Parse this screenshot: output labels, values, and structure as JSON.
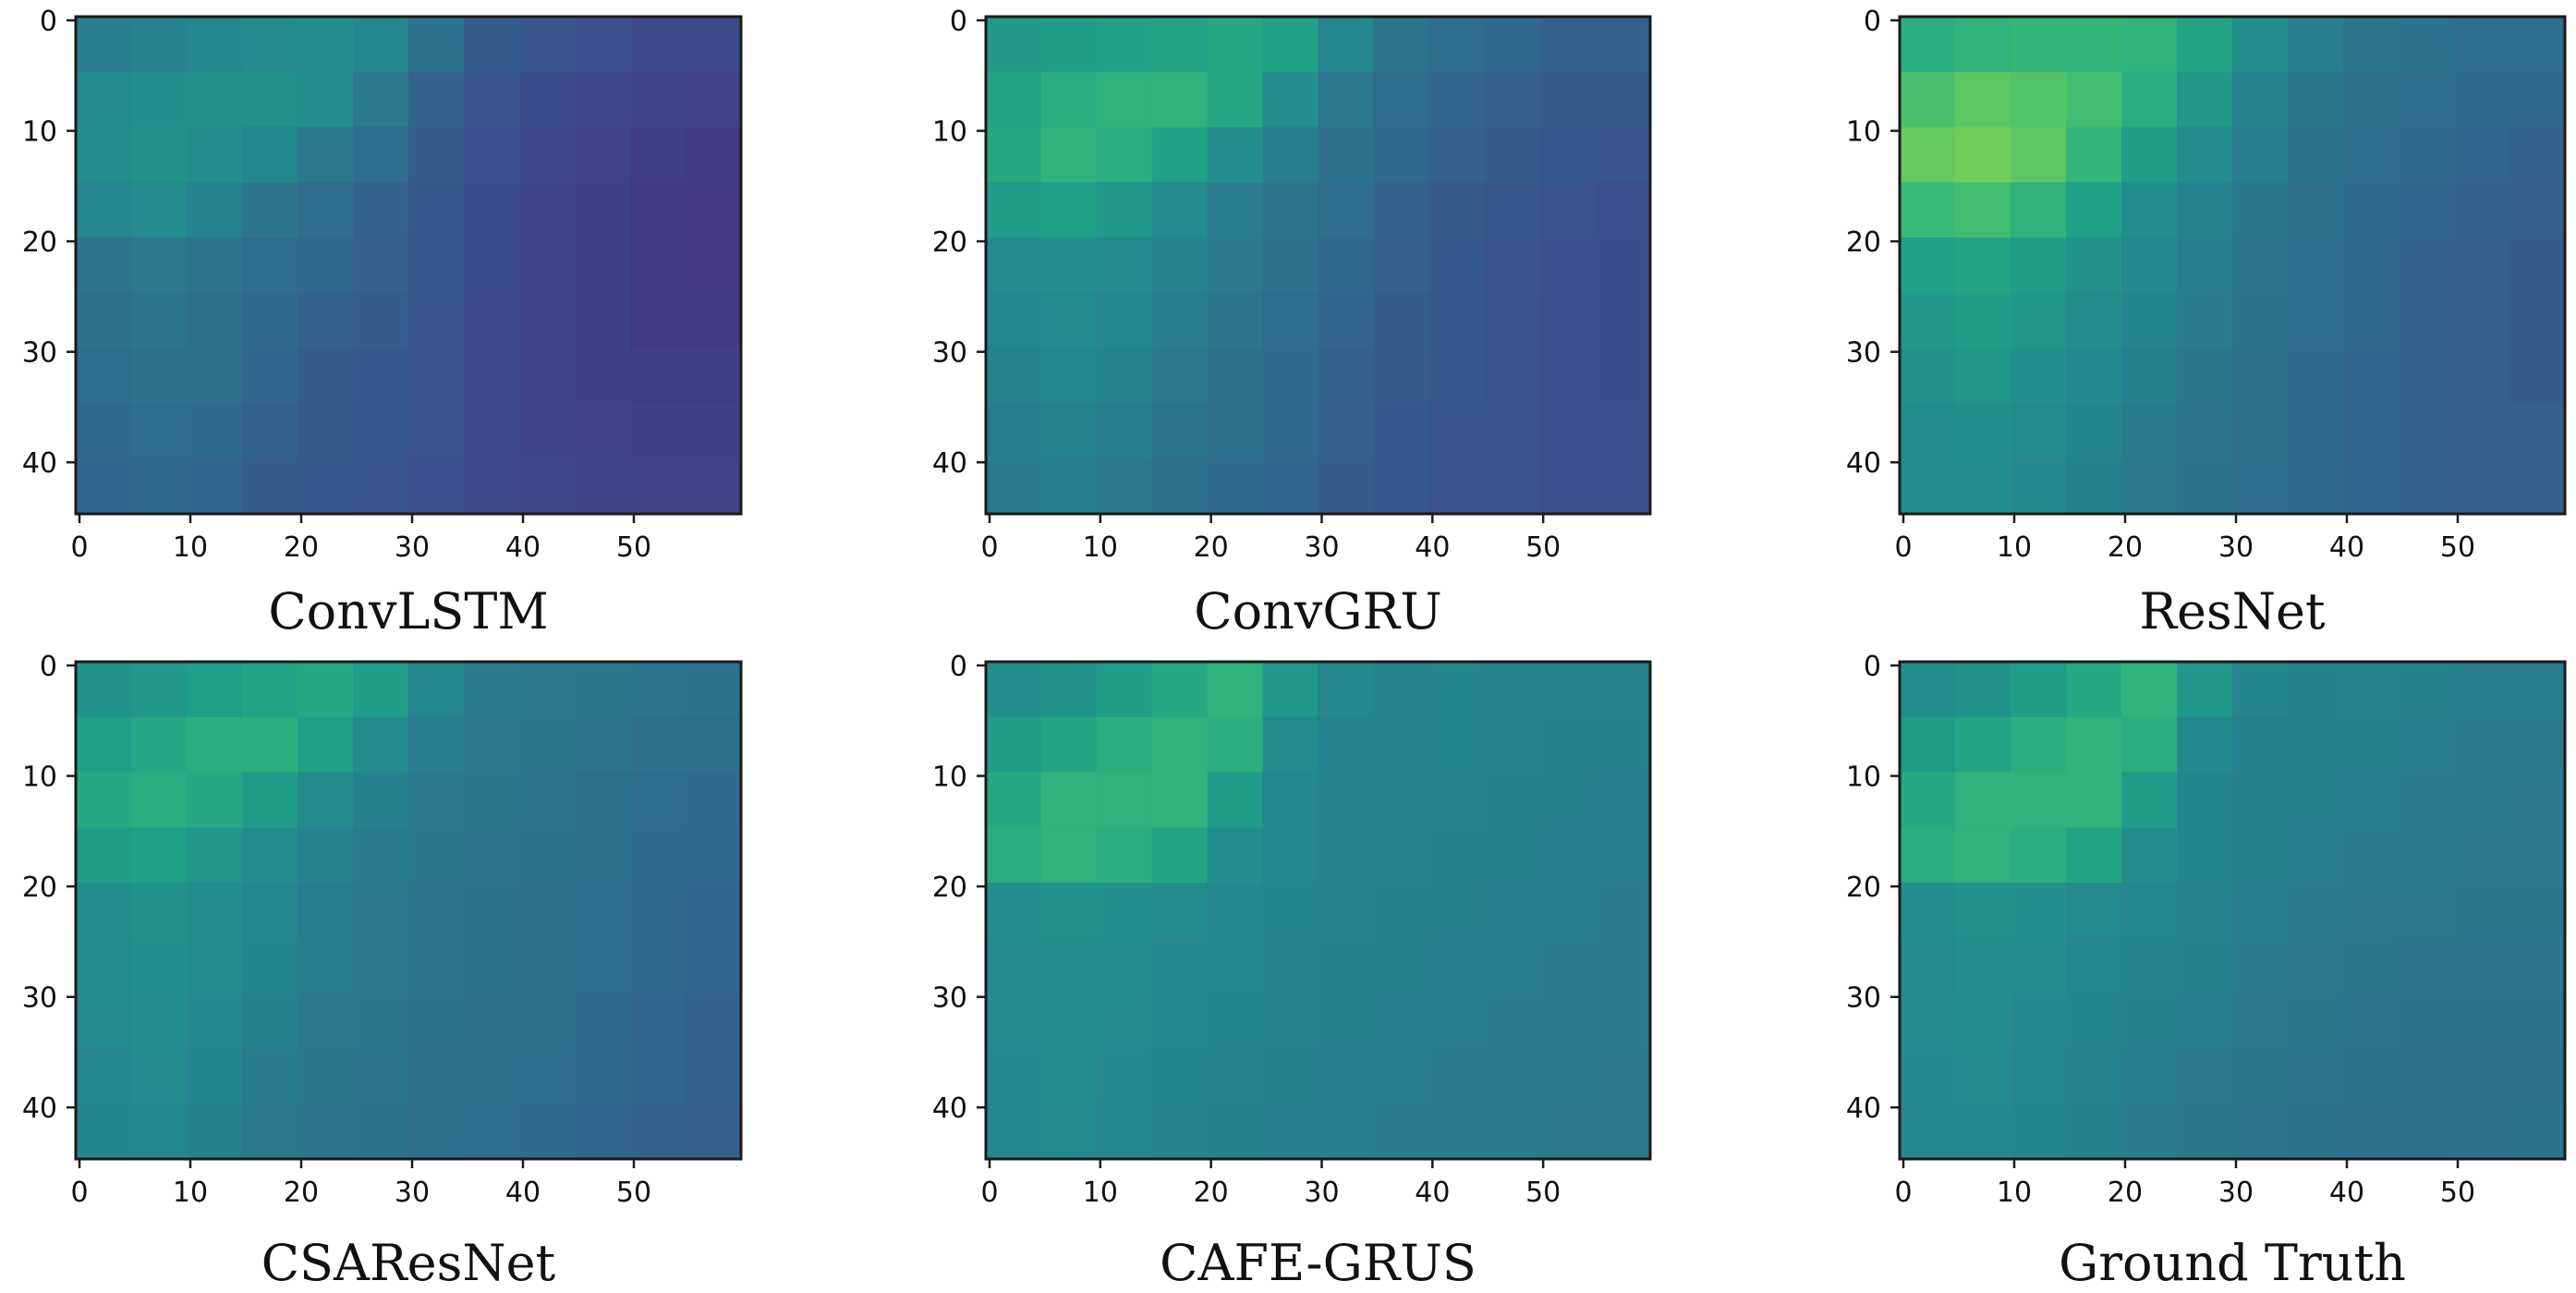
{
  "figure": {
    "panel_count": 6,
    "layout": "2x3 grid"
  },
  "chart_data": [
    {
      "type": "heatmap",
      "caption": "ConvLSTM",
      "x_ticks": [
        "0",
        "10",
        "20",
        "30",
        "40",
        "50"
      ],
      "y_ticks": [
        "0",
        "10",
        "20",
        "30",
        "40"
      ],
      "xlim": [
        0,
        60
      ],
      "ylim": [
        45,
        0
      ],
      "grid": [
        [
          0.48,
          0.5,
          0.52,
          0.54,
          0.56,
          0.52,
          0.42,
          0.34,
          0.3,
          0.28,
          0.26,
          0.26
        ],
        [
          0.54,
          0.57,
          0.58,
          0.58,
          0.56,
          0.46,
          0.36,
          0.3,
          0.27,
          0.25,
          0.24,
          0.23
        ],
        [
          0.56,
          0.58,
          0.56,
          0.52,
          0.46,
          0.4,
          0.34,
          0.28,
          0.25,
          0.23,
          0.21,
          0.2
        ],
        [
          0.52,
          0.54,
          0.5,
          0.44,
          0.4,
          0.36,
          0.32,
          0.27,
          0.24,
          0.22,
          0.2,
          0.19
        ],
        [
          0.44,
          0.46,
          0.44,
          0.4,
          0.38,
          0.35,
          0.31,
          0.27,
          0.24,
          0.22,
          0.2,
          0.19
        ],
        [
          0.42,
          0.44,
          0.42,
          0.38,
          0.36,
          0.34,
          0.3,
          0.26,
          0.24,
          0.22,
          0.2,
          0.2
        ],
        [
          0.4,
          0.42,
          0.41,
          0.37,
          0.34,
          0.32,
          0.29,
          0.26,
          0.24,
          0.22,
          0.21,
          0.21
        ],
        [
          0.38,
          0.4,
          0.39,
          0.36,
          0.33,
          0.31,
          0.29,
          0.26,
          0.24,
          0.23,
          0.22,
          0.22
        ],
        [
          0.37,
          0.38,
          0.37,
          0.34,
          0.32,
          0.3,
          0.28,
          0.26,
          0.25,
          0.24,
          0.23,
          0.23
        ]
      ]
    },
    {
      "type": "heatmap",
      "caption": "ConvGRU",
      "x_ticks": [
        "0",
        "10",
        "20",
        "30",
        "40",
        "50"
      ],
      "y_ticks": [
        "0",
        "10",
        "20",
        "30",
        "40"
      ],
      "xlim": [
        0,
        60
      ],
      "ylim": [
        45,
        0
      ],
      "grid": [
        [
          0.6,
          0.62,
          0.64,
          0.66,
          0.68,
          0.64,
          0.52,
          0.44,
          0.4,
          0.38,
          0.36,
          0.36
        ],
        [
          0.66,
          0.7,
          0.72,
          0.72,
          0.68,
          0.56,
          0.46,
          0.4,
          0.37,
          0.35,
          0.34,
          0.33
        ],
        [
          0.68,
          0.72,
          0.7,
          0.64,
          0.56,
          0.48,
          0.42,
          0.38,
          0.35,
          0.33,
          0.31,
          0.3
        ],
        [
          0.62,
          0.64,
          0.6,
          0.54,
          0.48,
          0.44,
          0.4,
          0.36,
          0.33,
          0.31,
          0.29,
          0.28
        ],
        [
          0.54,
          0.56,
          0.54,
          0.5,
          0.46,
          0.42,
          0.38,
          0.35,
          0.32,
          0.3,
          0.28,
          0.27
        ],
        [
          0.52,
          0.54,
          0.52,
          0.48,
          0.44,
          0.4,
          0.37,
          0.34,
          0.31,
          0.29,
          0.28,
          0.27
        ],
        [
          0.5,
          0.52,
          0.5,
          0.46,
          0.42,
          0.39,
          0.36,
          0.33,
          0.31,
          0.29,
          0.28,
          0.27
        ],
        [
          0.48,
          0.5,
          0.48,
          0.44,
          0.41,
          0.38,
          0.35,
          0.32,
          0.3,
          0.29,
          0.28,
          0.28
        ],
        [
          0.47,
          0.48,
          0.46,
          0.42,
          0.39,
          0.37,
          0.34,
          0.32,
          0.3,
          0.29,
          0.28,
          0.28
        ]
      ]
    },
    {
      "type": "heatmap",
      "caption": "ResNet",
      "x_ticks": [
        "0",
        "10",
        "20",
        "30",
        "40",
        "50"
      ],
      "y_ticks": [
        "0",
        "10",
        "20",
        "30",
        "40"
      ],
      "xlim": [
        0,
        60
      ],
      "ylim": [
        45,
        0
      ],
      "grid": [
        [
          0.7,
          0.72,
          0.74,
          0.74,
          0.72,
          0.66,
          0.56,
          0.48,
          0.44,
          0.42,
          0.4,
          0.4
        ],
        [
          0.8,
          0.84,
          0.82,
          0.78,
          0.7,
          0.6,
          0.5,
          0.45,
          0.42,
          0.4,
          0.38,
          0.38
        ],
        [
          0.86,
          0.88,
          0.84,
          0.74,
          0.62,
          0.54,
          0.48,
          0.43,
          0.4,
          0.38,
          0.37,
          0.36
        ],
        [
          0.76,
          0.78,
          0.72,
          0.64,
          0.56,
          0.5,
          0.45,
          0.41,
          0.39,
          0.37,
          0.36,
          0.35
        ],
        [
          0.64,
          0.66,
          0.62,
          0.58,
          0.53,
          0.48,
          0.44,
          0.4,
          0.38,
          0.36,
          0.35,
          0.34
        ],
        [
          0.6,
          0.62,
          0.6,
          0.55,
          0.51,
          0.47,
          0.43,
          0.4,
          0.38,
          0.36,
          0.35,
          0.34
        ],
        [
          0.58,
          0.6,
          0.57,
          0.53,
          0.49,
          0.45,
          0.42,
          0.39,
          0.37,
          0.36,
          0.35,
          0.34
        ],
        [
          0.56,
          0.57,
          0.55,
          0.51,
          0.47,
          0.44,
          0.41,
          0.39,
          0.37,
          0.36,
          0.35,
          0.35
        ],
        [
          0.55,
          0.56,
          0.53,
          0.49,
          0.46,
          0.43,
          0.4,
          0.38,
          0.37,
          0.36,
          0.35,
          0.35
        ]
      ]
    },
    {
      "type": "heatmap",
      "caption": "CSAResNet",
      "x_ticks": [
        "0",
        "10",
        "20",
        "30",
        "40",
        "50"
      ],
      "y_ticks": [
        "0",
        "10",
        "20",
        "30",
        "40"
      ],
      "xlim": [
        0,
        60
      ],
      "ylim": [
        45,
        0
      ],
      "grid": [
        [
          0.58,
          0.6,
          0.63,
          0.66,
          0.68,
          0.62,
          0.52,
          0.47,
          0.46,
          0.45,
          0.44,
          0.43
        ],
        [
          0.64,
          0.67,
          0.7,
          0.7,
          0.64,
          0.54,
          0.48,
          0.46,
          0.45,
          0.44,
          0.42,
          0.41
        ],
        [
          0.68,
          0.7,
          0.68,
          0.62,
          0.54,
          0.49,
          0.46,
          0.45,
          0.44,
          0.42,
          0.4,
          0.39
        ],
        [
          0.62,
          0.64,
          0.6,
          0.55,
          0.5,
          0.47,
          0.45,
          0.44,
          0.43,
          0.41,
          0.39,
          0.38
        ],
        [
          0.56,
          0.58,
          0.56,
          0.52,
          0.48,
          0.46,
          0.44,
          0.43,
          0.42,
          0.4,
          0.38,
          0.37
        ],
        [
          0.55,
          0.57,
          0.55,
          0.51,
          0.48,
          0.46,
          0.44,
          0.43,
          0.42,
          0.4,
          0.38,
          0.37
        ],
        [
          0.54,
          0.56,
          0.53,
          0.49,
          0.46,
          0.45,
          0.43,
          0.42,
          0.41,
          0.39,
          0.37,
          0.36
        ],
        [
          0.52,
          0.54,
          0.51,
          0.47,
          0.45,
          0.44,
          0.42,
          0.41,
          0.4,
          0.38,
          0.37,
          0.36
        ],
        [
          0.51,
          0.52,
          0.49,
          0.46,
          0.44,
          0.43,
          0.41,
          0.4,
          0.39,
          0.37,
          0.36,
          0.35
        ]
      ]
    },
    {
      "type": "heatmap",
      "caption": "CAFE-GRUS",
      "x_ticks": [
        "0",
        "10",
        "20",
        "30",
        "40",
        "50"
      ],
      "y_ticks": [
        "0",
        "10",
        "20",
        "30",
        "40"
      ],
      "xlim": [
        0,
        60
      ],
      "ylim": [
        45,
        0
      ],
      "grid": [
        [
          0.56,
          0.58,
          0.62,
          0.68,
          0.72,
          0.6,
          0.52,
          0.5,
          0.51,
          0.5,
          0.5,
          0.5
        ],
        [
          0.62,
          0.66,
          0.7,
          0.72,
          0.7,
          0.54,
          0.5,
          0.5,
          0.51,
          0.5,
          0.49,
          0.49
        ],
        [
          0.68,
          0.72,
          0.72,
          0.72,
          0.62,
          0.52,
          0.5,
          0.5,
          0.5,
          0.49,
          0.49,
          0.48
        ],
        [
          0.7,
          0.72,
          0.7,
          0.66,
          0.56,
          0.52,
          0.5,
          0.5,
          0.49,
          0.49,
          0.48,
          0.48
        ],
        [
          0.56,
          0.58,
          0.57,
          0.55,
          0.53,
          0.51,
          0.5,
          0.49,
          0.49,
          0.48,
          0.48,
          0.47
        ],
        [
          0.54,
          0.56,
          0.55,
          0.53,
          0.52,
          0.5,
          0.49,
          0.49,
          0.48,
          0.48,
          0.47,
          0.47
        ],
        [
          0.54,
          0.56,
          0.54,
          0.52,
          0.51,
          0.5,
          0.49,
          0.48,
          0.48,
          0.47,
          0.47,
          0.47
        ],
        [
          0.53,
          0.55,
          0.53,
          0.51,
          0.5,
          0.49,
          0.48,
          0.48,
          0.47,
          0.47,
          0.47,
          0.46
        ],
        [
          0.53,
          0.54,
          0.52,
          0.5,
          0.49,
          0.48,
          0.48,
          0.47,
          0.47,
          0.47,
          0.46,
          0.46
        ]
      ]
    },
    {
      "type": "heatmap",
      "caption": "Ground Truth",
      "x_ticks": [
        "0",
        "10",
        "20",
        "30",
        "40",
        "50"
      ],
      "y_ticks": [
        "0",
        "10",
        "20",
        "30",
        "40"
      ],
      "xlim": [
        0,
        60
      ],
      "ylim": [
        45,
        0
      ],
      "grid": [
        [
          0.56,
          0.58,
          0.62,
          0.68,
          0.72,
          0.6,
          0.51,
          0.49,
          0.5,
          0.49,
          0.48,
          0.48
        ],
        [
          0.62,
          0.66,
          0.7,
          0.72,
          0.7,
          0.53,
          0.49,
          0.49,
          0.49,
          0.48,
          0.47,
          0.47
        ],
        [
          0.68,
          0.72,
          0.72,
          0.72,
          0.62,
          0.51,
          0.49,
          0.49,
          0.48,
          0.47,
          0.47,
          0.46
        ],
        [
          0.7,
          0.72,
          0.7,
          0.66,
          0.55,
          0.51,
          0.49,
          0.48,
          0.47,
          0.47,
          0.46,
          0.46
        ],
        [
          0.56,
          0.58,
          0.57,
          0.54,
          0.52,
          0.5,
          0.48,
          0.47,
          0.46,
          0.46,
          0.45,
          0.45
        ],
        [
          0.54,
          0.56,
          0.55,
          0.52,
          0.5,
          0.49,
          0.47,
          0.46,
          0.45,
          0.44,
          0.44,
          0.44
        ],
        [
          0.54,
          0.55,
          0.53,
          0.51,
          0.49,
          0.48,
          0.46,
          0.45,
          0.44,
          0.43,
          0.43,
          0.43
        ],
        [
          0.53,
          0.54,
          0.52,
          0.5,
          0.48,
          0.46,
          0.45,
          0.44,
          0.43,
          0.42,
          0.42,
          0.42
        ],
        [
          0.52,
          0.53,
          0.51,
          0.49,
          0.47,
          0.45,
          0.44,
          0.43,
          0.42,
          0.41,
          0.42,
          0.43
        ]
      ]
    }
  ]
}
